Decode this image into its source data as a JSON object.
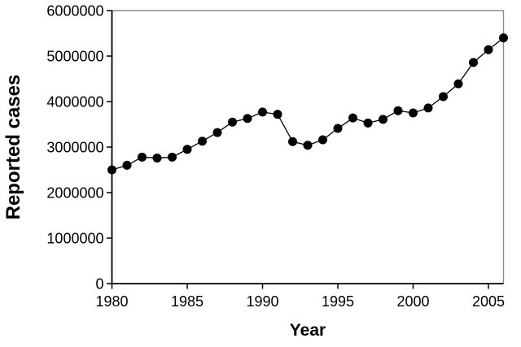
{
  "figure": {
    "background_color": "#ffffff",
    "axis_color": "#000000",
    "border_color": "#8c8c8c"
  },
  "chart_data": {
    "type": "line",
    "title": "",
    "xlabel": "Year",
    "ylabel": "Reported cases",
    "series": [
      {
        "name": "Reported cases",
        "x": [
          1980,
          1981,
          1982,
          1983,
          1984,
          1985,
          1986,
          1987,
          1988,
          1989,
          1990,
          1991,
          1992,
          1993,
          1994,
          1995,
          1996,
          1997,
          1998,
          1999,
          2000,
          2001,
          2002,
          2003,
          2004,
          2005,
          2006
        ],
        "values": [
          2500000,
          2600000,
          2780000,
          2760000,
          2780000,
          2950000,
          3130000,
          3320000,
          3550000,
          3630000,
          3770000,
          3720000,
          3120000,
          3040000,
          3160000,
          3410000,
          3640000,
          3530000,
          3610000,
          3800000,
          3750000,
          3860000,
          4110000,
          4390000,
          4860000,
          5140000,
          5400000
        ]
      }
    ],
    "xlim": [
      1980,
      2006
    ],
    "ylim": [
      0,
      6000000
    ],
    "x_ticks": [
      1980,
      1985,
      1990,
      1995,
      2000,
      2005
    ],
    "y_ticks": [
      0,
      1000000,
      2000000,
      3000000,
      4000000,
      5000000,
      6000000
    ],
    "grid": false,
    "legend": false,
    "marker": "filled-circle",
    "marker_color": "#000000",
    "line_color": "#000000",
    "marker_radius": 5.5
  }
}
